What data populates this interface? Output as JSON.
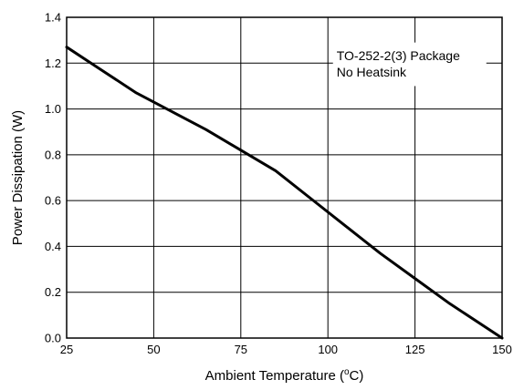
{
  "chart_data": {
    "type": "line",
    "title": "",
    "xlabel_main": "Ambient Temperature (",
    "xlabel_sup": "o",
    "xlabel_end": "C)",
    "ylabel": "Power Dissipation (W)",
    "xlim": [
      25,
      150
    ],
    "ylim": [
      0,
      1.4
    ],
    "xticks": [
      "25",
      "50",
      "75",
      "100",
      "125",
      "150"
    ],
    "yticks": [
      "0.0",
      "0.2",
      "0.4",
      "0.6",
      "0.8",
      "1.0",
      "1.2",
      "1.4"
    ],
    "grid": true,
    "annotation": {
      "line1": "TO-252-2(3) Package",
      "line2": "No Heatsink"
    },
    "series": [
      {
        "x": [
          25,
          35,
          45,
          55,
          65,
          75,
          85,
          95,
          105,
          115,
          125,
          135,
          150
        ],
        "y": [
          1.27,
          1.17,
          1.07,
          0.99,
          0.91,
          0.82,
          0.73,
          0.61,
          0.49,
          0.37,
          0.26,
          0.15,
          0.0
        ]
      }
    ]
  }
}
